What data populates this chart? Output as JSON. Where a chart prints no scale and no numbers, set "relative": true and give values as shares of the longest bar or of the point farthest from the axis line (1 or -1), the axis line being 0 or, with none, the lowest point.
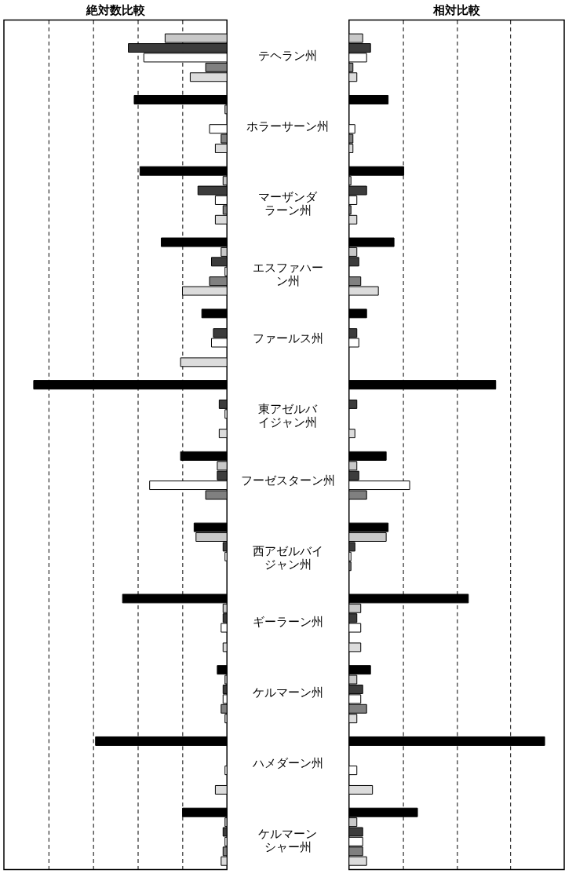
{
  "chart_data": [
    {
      "type": "bar",
      "orientation": "horizontal",
      "relative": true,
      "grid": "x",
      "legend": false,
      "tick_labels": "y",
      "title": "絶対数比較",
      "categories": [
        "テヘラン州",
        "ホラーサーン州",
        "マーザンダラーン州",
        "エスファハーン州",
        "ファールス州",
        "東アゼルバイジャン州",
        "フーゼスターン州",
        "西アゼルバイジャン州",
        "ギーラーン州",
        "ケルマーン州",
        "ハメダーン州",
        "ケルマーンシャー州"
      ],
      "series": [
        {
          "color": "#000000",
          "values": [
            null,
            0.48,
            0.45,
            0.34,
            0.13,
            1.0,
            0.24,
            0.17,
            0.54,
            0.05,
            0.68,
            0.23
          ]
        },
        {
          "color": "#c8c8c8",
          "values": [
            0.32,
            0.01,
            0.02,
            0.03,
            null,
            null,
            0.05,
            0.16,
            0.02,
            0.01,
            null,
            0.01
          ]
        },
        {
          "color": "#3c3c3c",
          "values": [
            0.51,
            null,
            0.15,
            0.08,
            0.07,
            0.04,
            0.05,
            0.02,
            0.02,
            0.02,
            null,
            0.02
          ]
        },
        {
          "color": "#ffffff",
          "values": [
            0.43,
            0.09,
            0.06,
            0.01,
            0.08,
            0.01,
            0.4,
            0.01,
            0.03,
            0.02,
            0.01,
            0.01
          ]
        },
        {
          "color": "#808080",
          "values": [
            0.11,
            0.03,
            0.02,
            0.09,
            null,
            null,
            0.11,
            null,
            null,
            0.03,
            null,
            0.02
          ]
        },
        {
          "color": "#dcdcdc",
          "values": [
            0.19,
            0.06,
            0.06,
            0.23,
            0.24,
            0.04,
            null,
            null,
            0.02,
            0.01,
            0.06,
            0.03
          ]
        }
      ]
    },
    {
      "type": "bar",
      "orientation": "horizontal",
      "relative": true,
      "grid": "x",
      "legend": false,
      "tick_labels": false,
      "title": "相対比較",
      "series": [
        {
          "color": "#000000",
          "values": [
            null,
            0.2,
            0.28,
            0.23,
            0.09,
            0.75,
            0.19,
            0.2,
            0.61,
            0.11,
            1.0,
            0.35
          ]
        },
        {
          "color": "#c8c8c8",
          "values": [
            0.07,
            null,
            0.01,
            0.04,
            null,
            null,
            0.04,
            0.19,
            0.06,
            0.04,
            null,
            0.04
          ]
        },
        {
          "color": "#3c3c3c",
          "values": [
            0.11,
            null,
            0.09,
            0.05,
            0.04,
            0.04,
            0.05,
            0.03,
            0.04,
            0.07,
            null,
            0.07
          ]
        },
        {
          "color": "#ffffff",
          "values": [
            0.09,
            0.03,
            0.04,
            null,
            0.05,
            null,
            0.31,
            0.01,
            0.06,
            0.06,
            0.04,
            0.07
          ]
        },
        {
          "color": "#808080",
          "values": [
            0.02,
            0.02,
            0.01,
            0.06,
            null,
            null,
            0.09,
            0.01,
            null,
            0.09,
            null,
            0.07
          ]
        },
        {
          "color": "#dcdcdc",
          "values": [
            0.04,
            0.02,
            0.04,
            0.15,
            null,
            0.03,
            null,
            null,
            0.06,
            0.04,
            0.12,
            0.09
          ]
        }
      ]
    }
  ]
}
